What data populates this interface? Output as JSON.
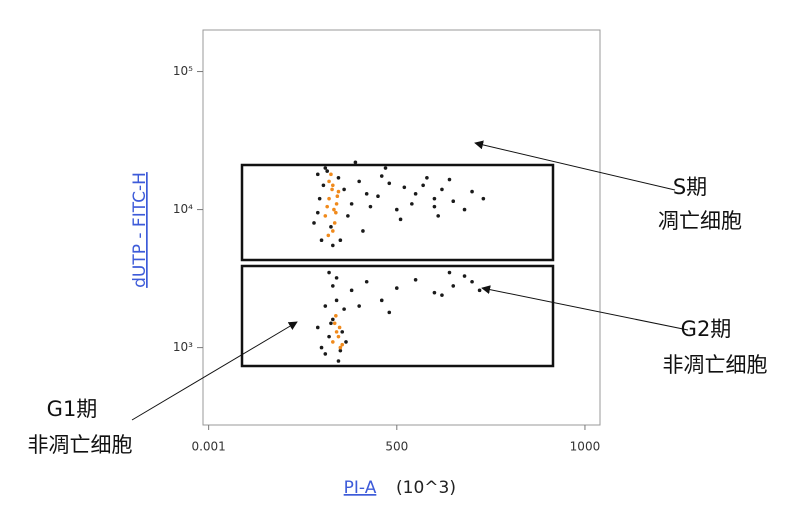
{
  "chart_data": {
    "type": "scatter",
    "xlabel": "PI-A",
    "xunit": "(10^3)",
    "ylabel": "dUTP - FITC-H",
    "xlim": [
      -15,
      1040
    ],
    "xticks": [
      0.001,
      500,
      1000
    ],
    "ylim": [
      275,
      200000
    ],
    "yscale": "log",
    "yticks": [
      {
        "value": 1000,
        "label": "10³"
      },
      {
        "value": 10000,
        "label": "10⁴"
      },
      {
        "value": 100000,
        "label": "10⁵"
      }
    ],
    "series": [
      {
        "color": "#1a1a1a",
        "x": [
          280,
          295,
          300,
          305,
          360,
          380,
          400,
          420,
          450,
          480,
          500,
          520,
          550,
          580,
          600,
          620,
          650,
          700,
          730,
          290,
          310,
          370,
          390,
          430,
          460,
          510,
          540,
          570,
          610,
          640,
          680,
          330,
          350,
          325,
          315,
          345,
          290,
          410,
          470,
          600,
          320,
          330,
          340,
          380,
          420,
          460,
          500,
          550,
          600,
          650,
          680,
          700,
          720,
          640,
          620,
          480,
          400,
          310,
          325,
          360,
          310,
          320,
          330,
          345,
          355,
          365,
          300,
          290,
          340,
          350
        ],
        "y": [
          8000,
          12000,
          6000,
          15000,
          14000,
          11000,
          16000,
          13000,
          12500,
          15500,
          10000,
          14500,
          13000,
          17000,
          12000,
          14000,
          11500,
          13500,
          12000,
          9500,
          20000,
          9000,
          22000,
          10500,
          17500,
          8500,
          11000,
          15000,
          9000,
          16500,
          10000,
          5500,
          6000,
          7500,
          19000,
          17000,
          18000,
          7000,
          20000,
          10500,
          3500,
          2800,
          3200,
          2600,
          3000,
          2200,
          2700,
          3100,
          2500,
          2800,
          3300,
          3000,
          2600,
          3500,
          2400,
          1800,
          2000,
          2000,
          1500,
          1900,
          900,
          1200,
          1600,
          800,
          1300,
          1100,
          1000,
          1400,
          2200,
          950
        ]
      },
      {
        "color": "#f08a1c",
        "x": [
          310,
          320,
          330,
          340,
          325,
          335,
          315,
          345,
          330,
          320,
          338,
          328,
          318,
          342,
          333,
          330,
          340,
          350,
          335,
          345,
          355,
          338,
          348
        ],
        "y": [
          9000,
          12000,
          15000,
          11000,
          18000,
          8000,
          10500,
          13500,
          7000,
          16000,
          9500,
          14000,
          6500,
          12500,
          10000,
          1100,
          1300,
          1000,
          1500,
          1200,
          1050,
          1700,
          1400
        ]
      }
    ],
    "annotations": [
      {
        "lines": [
          "S期",
          "凋亡细胞"
        ]
      },
      {
        "lines": [
          "G2期",
          "非凋亡细胞"
        ]
      },
      {
        "lines": [
          "G1期",
          "非凋亡细胞"
        ]
      }
    ]
  }
}
